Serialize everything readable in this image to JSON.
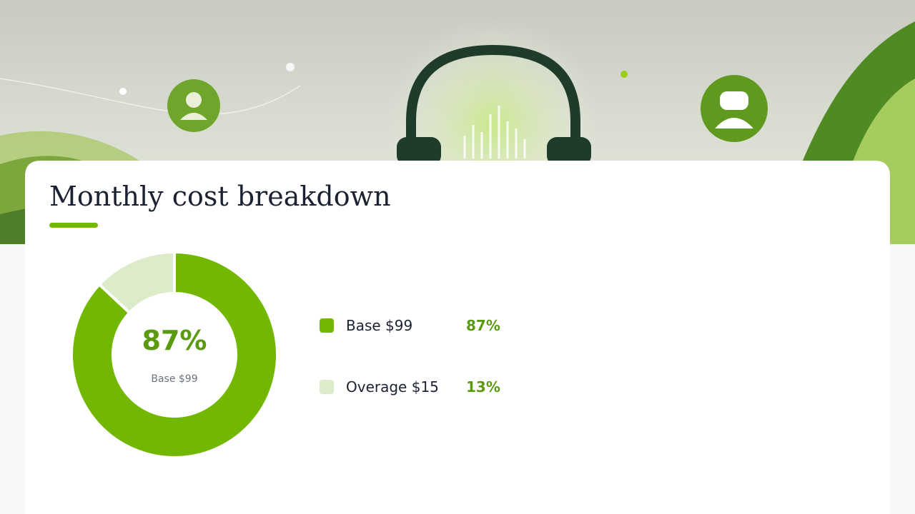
{
  "chart_data": {
    "type": "pie",
    "title": "Monthly cost breakdown",
    "categories": [
      "Base $99",
      "Overage $15"
    ],
    "values": [
      87,
      13
    ],
    "value_labels": [
      "87%",
      "13%"
    ],
    "colors": [
      "#72b802",
      "#dcebc9"
    ]
  }
}
